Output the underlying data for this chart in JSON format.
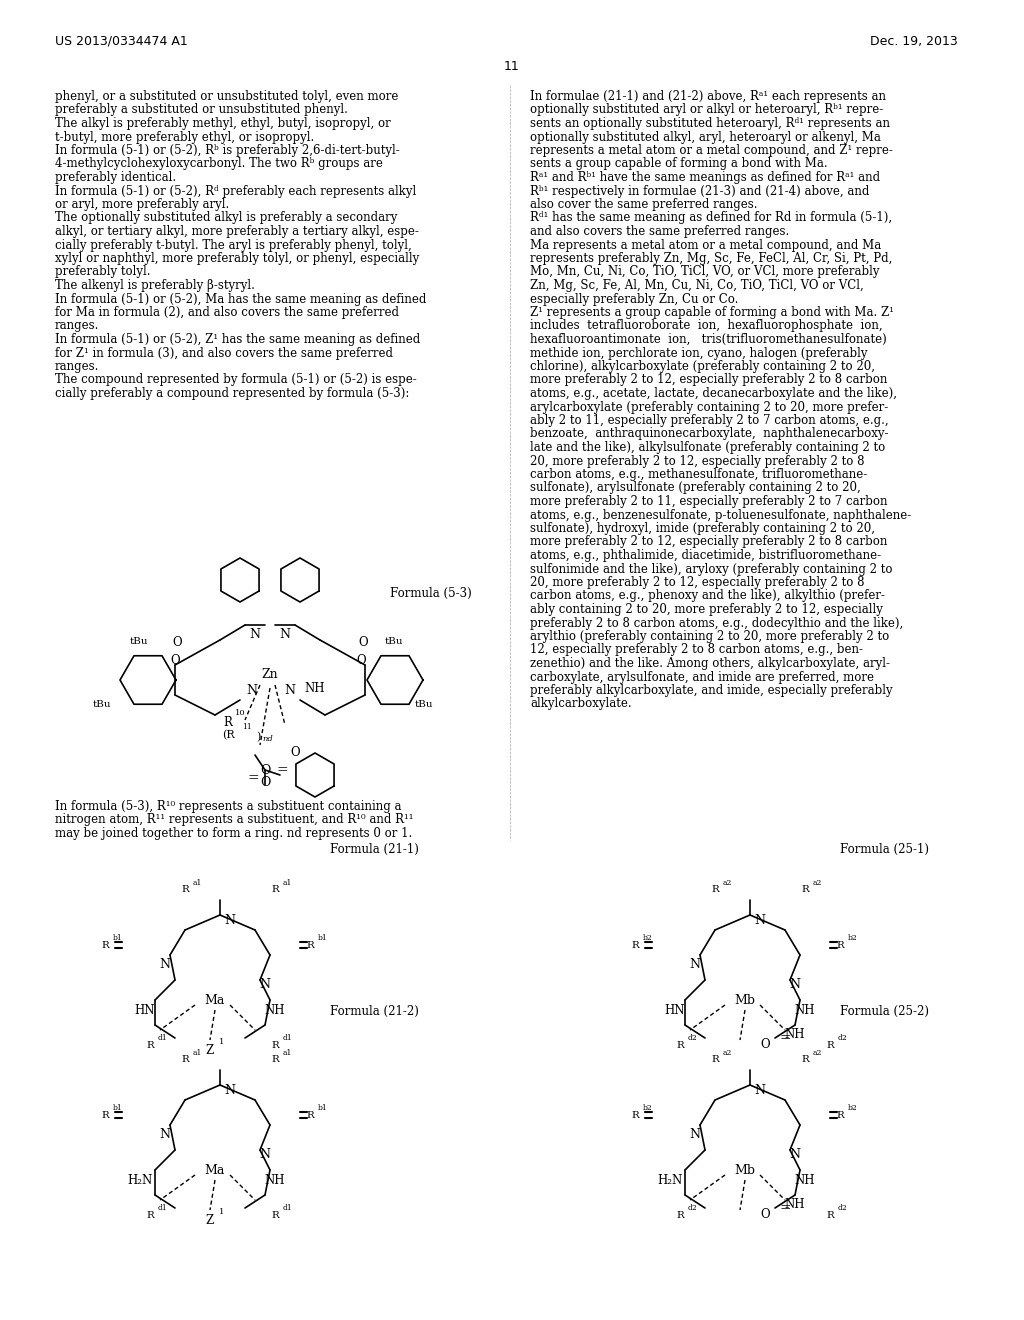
{
  "page_header_left": "US 2013/0334474 A1",
  "page_header_right": "Dec. 19, 2013",
  "page_number": "11",
  "background_color": "#ffffff",
  "text_color": "#000000",
  "left_column_text": [
    "phenyl, or a substituted or unsubstituted tolyl, even more",
    "preferably a substituted or unsubstituted phenyl.",
    "The alkyl is preferably methyl, ethyl, butyl, isopropyl, or",
    "t-butyl, more preferably ethyl, or isopropyl.",
    "In formula (5-1) or (5-2), Rᵇ is preferably 2,6-di-tert-butyl-",
    "4-methylcyclohexyloxycarbonyl. The two Rᵇ groups are",
    "preferably identical.",
    "In formula (5-1) or (5-2), Rᵈ preferably each represents alkyl",
    "or aryl, more preferably aryl.",
    "The optionally substituted alkyl is preferably a secondary",
    "alkyl, or tertiary alkyl, more preferably a tertiary alkyl, espe-",
    "cially preferably t-butyl. The aryl is preferably phenyl, tolyl,",
    "xylyl or naphthyl, more preferably tolyl, or phenyl, especially",
    "preferably tolyl.",
    "The alkenyl is preferably β-styryl.",
    "In formula (5-1) or (5-2), Ma has the same meaning as defined",
    "for Ma in formula (2), and also covers the same preferred",
    "ranges.",
    "In formula (5-1) or (5-2), Z¹ has the same meaning as defined",
    "for Z¹ in formula (3), and also covers the same preferred",
    "ranges.",
    "The compound represented by formula (5-1) or (5-2) is espe-",
    "cially preferably a compound represented by formula (5-3):"
  ],
  "right_column_text": [
    "In formulae (21-1) and (21-2) above, Rᵃ¹ each represents an",
    "optionally substituted aryl or alkyl or heteroaryl, Rᵇ¹ repre-",
    "sents an optionally substituted heteroaryl, Rᵈ¹ represents an",
    "optionally substituted alkyl, aryl, heteroaryl or alkenyl, Ma",
    "represents a metal atom or a metal compound, and Z¹ repre-",
    "sents a group capable of forming a bond with Ma.",
    "Rᵃ¹ and Rᵇ¹ have the same meanings as defined for Rᵃ¹ and",
    "Rᵇ¹ respectively in formulae (21-3) and (21-4) above, and",
    "also cover the same preferred ranges.",
    "Rᵈ¹ has the same meaning as defined for Rd in formula (5-1),",
    "and also covers the same preferred ranges.",
    "Ma represents a metal atom or a metal compound, and Ma",
    "represents preferably Zn, Mg, Sc, Fe, FeCl, Al, Cr, Si, Pt, Pd,",
    "Mo, Mn, Cu, Ni, Co, TiO, TiCl, VO, or VCl, more preferably",
    "Zn, Mg, Sc, Fe, Al, Mn, Cu, Ni, Co, TiO, TiCl, VO or VCl,",
    "especially preferably Zn, Cu or Co.",
    "Z¹ represents a group capable of forming a bond with Ma. Z¹",
    "includes  tetrafluoroborate  ion,  hexafluorophosphate  ion,",
    "hexafluoroantimonate  ion,   tris(trifluoromethanesulfonate)",
    "methide ion, perchlorate ion, cyano, halogen (preferably",
    "chlorine), alkylcarboxylate (preferably containing 2 to 20,",
    "more preferably 2 to 12, especially preferably 2 to 8 carbon",
    "atoms, e.g., acetate, lactate, decanecarboxylate and the like),",
    "arylcarboxylate (preferably containing 2 to 20, more prefer-",
    "ably 2 to 11, especially preferably 2 to 7 carbon atoms, e.g.,",
    "benzoate,  anthraquinonecarboxylate,  naphthalenecarboxy-",
    "late and the like), alkylsulfonate (preferably containing 2 to",
    "20, more preferably 2 to 12, especially preferably 2 to 8",
    "carbon atoms, e.g., methanesulfonate, trifluoromethane-",
    "sulfonate), arylsulfonate (preferably containing 2 to 20,",
    "more preferably 2 to 11, especially preferably 2 to 7 carbon",
    "atoms, e.g., benzenesulfonate, p-toluenesulfonate, naphthalene-",
    "sulfonate), hydroxyl, imide (preferably containing 2 to 20,",
    "more preferably 2 to 12, especially preferably 2 to 8 carbon",
    "atoms, e.g., phthalimide, diacetimide, bistrifluoromethane-",
    "sulfonimide and the like), aryloxy (preferably containing 2 to",
    "20, more preferably 2 to 12, especially preferably 2 to 8",
    "carbon atoms, e.g., phenoxy and the like), alkylthio (prefer-",
    "ably containing 2 to 20, more preferably 2 to 12, especially",
    "preferably 2 to 8 carbon atoms, e.g., dodecylthio and the like),",
    "arylthio (preferably containing 2 to 20, more preferably 2 to",
    "12, especially preferably 2 to 8 carbon atoms, e.g., ben-",
    "zenethio) and the like. Among others, alkylcarboxylate, aryl-",
    "carboxylate, arylsulfonate, and imide are preferred, more",
    "preferably alkylcarboxylate, and imide, especially preferably",
    "alkylcarboxylate."
  ],
  "formula_53_label": "Formula (5-3)",
  "formula_211_label": "Formula (21-1)",
  "formula_212_label": "Formula (21-2)",
  "formula_251_label": "Formula (25-1)",
  "formula_252_label": "Formula (25-2)",
  "below_53_text": [
    "In formula (5-3), R¹⁰ represents a substituent containing a",
    "nitrogen atom, R¹¹ represents a substituent, and R¹⁰ and R¹¹",
    "may be joined together to form a ring. nd represents 0 or 1."
  ]
}
